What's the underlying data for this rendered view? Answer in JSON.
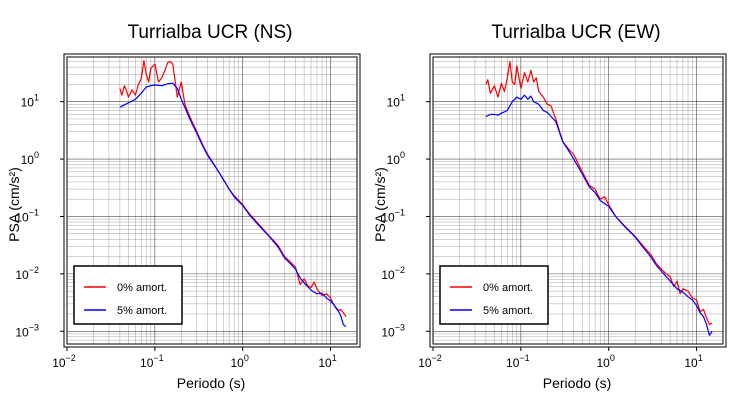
{
  "chart_data": [
    {
      "type": "line",
      "title": "Turrialba UCR (NS)",
      "xlabel": "Periodo (s)",
      "ylabel": "PSA (cm/s²)",
      "xscale": "log",
      "yscale": "log",
      "xlim": [
        0.01,
        20
      ],
      "ylim": [
        0.0006,
        60
      ],
      "grid": true,
      "legend_position": "bottom-left",
      "xticks": [
        {
          "base": "10",
          "exp": "−2"
        },
        {
          "base": "10",
          "exp": "−1"
        },
        {
          "base": "10",
          "exp": "0"
        },
        {
          "base": "10",
          "exp": "1"
        }
      ],
      "yticks": [
        {
          "base": "10",
          "exp": "−3"
        },
        {
          "base": "10",
          "exp": "−2"
        },
        {
          "base": "10",
          "exp": "−1"
        },
        {
          "base": "10",
          "exp": "0"
        },
        {
          "base": "10",
          "exp": "1"
        }
      ],
      "series": [
        {
          "name": "0% amort.",
          "color": "#ff0000",
          "points": [
            [
              0.04,
              17
            ],
            [
              0.042,
              13
            ],
            [
              0.045,
              19
            ],
            [
              0.048,
              15
            ],
            [
              0.05,
              12
            ],
            [
              0.055,
              16
            ],
            [
              0.06,
              13
            ],
            [
              0.065,
              20
            ],
            [
              0.07,
              25
            ],
            [
              0.075,
              52
            ],
            [
              0.08,
              30
            ],
            [
              0.085,
              22
            ],
            [
              0.09,
              38
            ],
            [
              0.1,
              45
            ],
            [
              0.11,
              22
            ],
            [
              0.12,
              26
            ],
            [
              0.13,
              35
            ],
            [
              0.14,
              48
            ],
            [
              0.15,
              50
            ],
            [
              0.16,
              45
            ],
            [
              0.18,
              12
            ],
            [
              0.2,
              22
            ],
            [
              0.22,
              9
            ],
            [
              0.25,
              5.5
            ],
            [
              0.3,
              3
            ],
            [
              0.35,
              1.8
            ],
            [
              0.4,
              1.2
            ],
            [
              0.5,
              0.7
            ],
            [
              0.6,
              0.45
            ],
            [
              0.7,
              0.3
            ],
            [
              0.8,
              0.23
            ],
            [
              1.0,
              0.16
            ],
            [
              1.2,
              0.11
            ],
            [
              1.5,
              0.075
            ],
            [
              2.0,
              0.046
            ],
            [
              2.5,
              0.032
            ],
            [
              3.0,
              0.02
            ],
            [
              3.5,
              0.016
            ],
            [
              4.0,
              0.013
            ],
            [
              4.5,
              0.0065
            ],
            [
              5.0,
              0.0082
            ],
            [
              5.5,
              0.0062
            ],
            [
              6.0,
              0.0058
            ],
            [
              6.5,
              0.0072
            ],
            [
              7.0,
              0.0055
            ],
            [
              8.0,
              0.0042
            ],
            [
              9.0,
              0.0045
            ],
            [
              10,
              0.0038
            ],
            [
              11,
              0.0028
            ],
            [
              12,
              0.0023
            ],
            [
              13,
              0.0024
            ],
            [
              14,
              0.0021
            ],
            [
              15,
              0.0018
            ]
          ]
        },
        {
          "name": "5% amort.",
          "color": "#0000ff",
          "points": [
            [
              0.04,
              8
            ],
            [
              0.05,
              9.5
            ],
            [
              0.06,
              11
            ],
            [
              0.07,
              14
            ],
            [
              0.08,
              18
            ],
            [
              0.09,
              19
            ],
            [
              0.1,
              19.5
            ],
            [
              0.12,
              19
            ],
            [
              0.14,
              20.5
            ],
            [
              0.16,
              21
            ],
            [
              0.18,
              17
            ],
            [
              0.2,
              11
            ],
            [
              0.25,
              5
            ],
            [
              0.3,
              2.8
            ],
            [
              0.35,
              1.7
            ],
            [
              0.4,
              1.15
            ],
            [
              0.5,
              0.7
            ],
            [
              0.6,
              0.44
            ],
            [
              0.7,
              0.3
            ],
            [
              0.8,
              0.22
            ],
            [
              1.0,
              0.155
            ],
            [
              1.2,
              0.105
            ],
            [
              1.5,
              0.072
            ],
            [
              2.0,
              0.045
            ],
            [
              2.5,
              0.03
            ],
            [
              3.0,
              0.019
            ],
            [
              3.5,
              0.015
            ],
            [
              4.0,
              0.012
            ],
            [
              4.5,
              0.0085
            ],
            [
              5.0,
              0.007
            ],
            [
              6.0,
              0.0052
            ],
            [
              7.0,
              0.0045
            ],
            [
              8.0,
              0.0046
            ],
            [
              9.0,
              0.0038
            ],
            [
              10,
              0.0034
            ],
            [
              12,
              0.0024
            ],
            [
              13,
              0.0019
            ],
            [
              14,
              0.0013
            ],
            [
              15,
              0.0012
            ]
          ]
        }
      ]
    },
    {
      "type": "line",
      "title": "Turrialba UCR (EW)",
      "xlabel": "Periodo (s)",
      "ylabel": "PSA (cm/s²)",
      "xscale": "log",
      "yscale": "log",
      "xlim": [
        0.01,
        20
      ],
      "ylim": [
        0.0006,
        60
      ],
      "grid": true,
      "legend_position": "bottom-left",
      "xticks": [
        {
          "base": "10",
          "exp": "−2"
        },
        {
          "base": "10",
          "exp": "−1"
        },
        {
          "base": "10",
          "exp": "0"
        },
        {
          "base": "10",
          "exp": "1"
        }
      ],
      "yticks": [
        {
          "base": "10",
          "exp": "−3"
        },
        {
          "base": "10",
          "exp": "−2"
        },
        {
          "base": "10",
          "exp": "−1"
        },
        {
          "base": "10",
          "exp": "0"
        },
        {
          "base": "10",
          "exp": "1"
        }
      ],
      "series": [
        {
          "name": "0% amort.",
          "color": "#ff0000",
          "points": [
            [
              0.04,
              20
            ],
            [
              0.042,
              24
            ],
            [
              0.045,
              14
            ],
            [
              0.05,
              19
            ],
            [
              0.055,
              12
            ],
            [
              0.06,
              21
            ],
            [
              0.065,
              15
            ],
            [
              0.07,
              25
            ],
            [
              0.075,
              50
            ],
            [
              0.08,
              22
            ],
            [
              0.085,
              20
            ],
            [
              0.09,
              42
            ],
            [
              0.1,
              17
            ],
            [
              0.11,
              32
            ],
            [
              0.12,
              22
            ],
            [
              0.13,
              35
            ],
            [
              0.14,
              22
            ],
            [
              0.15,
              26
            ],
            [
              0.16,
              15
            ],
            [
              0.18,
              12
            ],
            [
              0.2,
              9
            ],
            [
              0.22,
              8.5
            ],
            [
              0.25,
              5
            ],
            [
              0.3,
              2
            ],
            [
              0.35,
              1.5
            ],
            [
              0.4,
              1.2
            ],
            [
              0.5,
              0.6
            ],
            [
              0.6,
              0.35
            ],
            [
              0.7,
              0.3
            ],
            [
              0.8,
              0.2
            ],
            [
              0.9,
              0.22
            ],
            [
              1.0,
              0.16
            ],
            [
              1.2,
              0.1
            ],
            [
              1.5,
              0.07
            ],
            [
              2.0,
              0.045
            ],
            [
              2.5,
              0.03
            ],
            [
              3.0,
              0.022
            ],
            [
              3.5,
              0.015
            ],
            [
              4.0,
              0.012
            ],
            [
              4.5,
              0.01
            ],
            [
              5.0,
              0.009
            ],
            [
              5.5,
              0.006
            ],
            [
              6.0,
              0.0075
            ],
            [
              6.5,
              0.0045
            ],
            [
              7.0,
              0.0055
            ],
            [
              8.0,
              0.005
            ],
            [
              9.0,
              0.0038
            ],
            [
              10,
              0.0035
            ],
            [
              11,
              0.0022
            ],
            [
              12,
              0.0024
            ],
            [
              13,
              0.0017
            ],
            [
              14,
              0.0013
            ],
            [
              15,
              0.0014
            ]
          ]
        },
        {
          "name": "5% amort.",
          "color": "#0000ff",
          "points": [
            [
              0.04,
              5.5
            ],
            [
              0.045,
              6
            ],
            [
              0.05,
              6
            ],
            [
              0.055,
              5.8
            ],
            [
              0.06,
              6.3
            ],
            [
              0.07,
              7
            ],
            [
              0.08,
              10
            ],
            [
              0.09,
              12
            ],
            [
              0.1,
              11
            ],
            [
              0.11,
              13
            ],
            [
              0.12,
              11
            ],
            [
              0.13,
              12.5
            ],
            [
              0.14,
              10
            ],
            [
              0.16,
              9
            ],
            [
              0.18,
              7
            ],
            [
              0.2,
              6.5
            ],
            [
              0.25,
              4.5
            ],
            [
              0.3,
              2.0
            ],
            [
              0.35,
              1.4
            ],
            [
              0.4,
              1.0
            ],
            [
              0.5,
              0.55
            ],
            [
              0.6,
              0.33
            ],
            [
              0.7,
              0.26
            ],
            [
              0.8,
              0.19
            ],
            [
              1.0,
              0.15
            ],
            [
              1.2,
              0.1
            ],
            [
              1.5,
              0.068
            ],
            [
              2.0,
              0.044
            ],
            [
              2.5,
              0.028
            ],
            [
              3.0,
              0.02
            ],
            [
              3.5,
              0.014
            ],
            [
              4.0,
              0.011
            ],
            [
              4.5,
              0.009
            ],
            [
              5.0,
              0.0075
            ],
            [
              6.0,
              0.0055
            ],
            [
              7.0,
              0.0048
            ],
            [
              8.0,
              0.004
            ],
            [
              9.0,
              0.0035
            ],
            [
              10,
              0.0028
            ],
            [
              11,
              0.0021
            ],
            [
              12,
              0.0018
            ],
            [
              13,
              0.0013
            ],
            [
              14,
              0.00085
            ],
            [
              15,
              0.001
            ]
          ]
        }
      ]
    }
  ]
}
